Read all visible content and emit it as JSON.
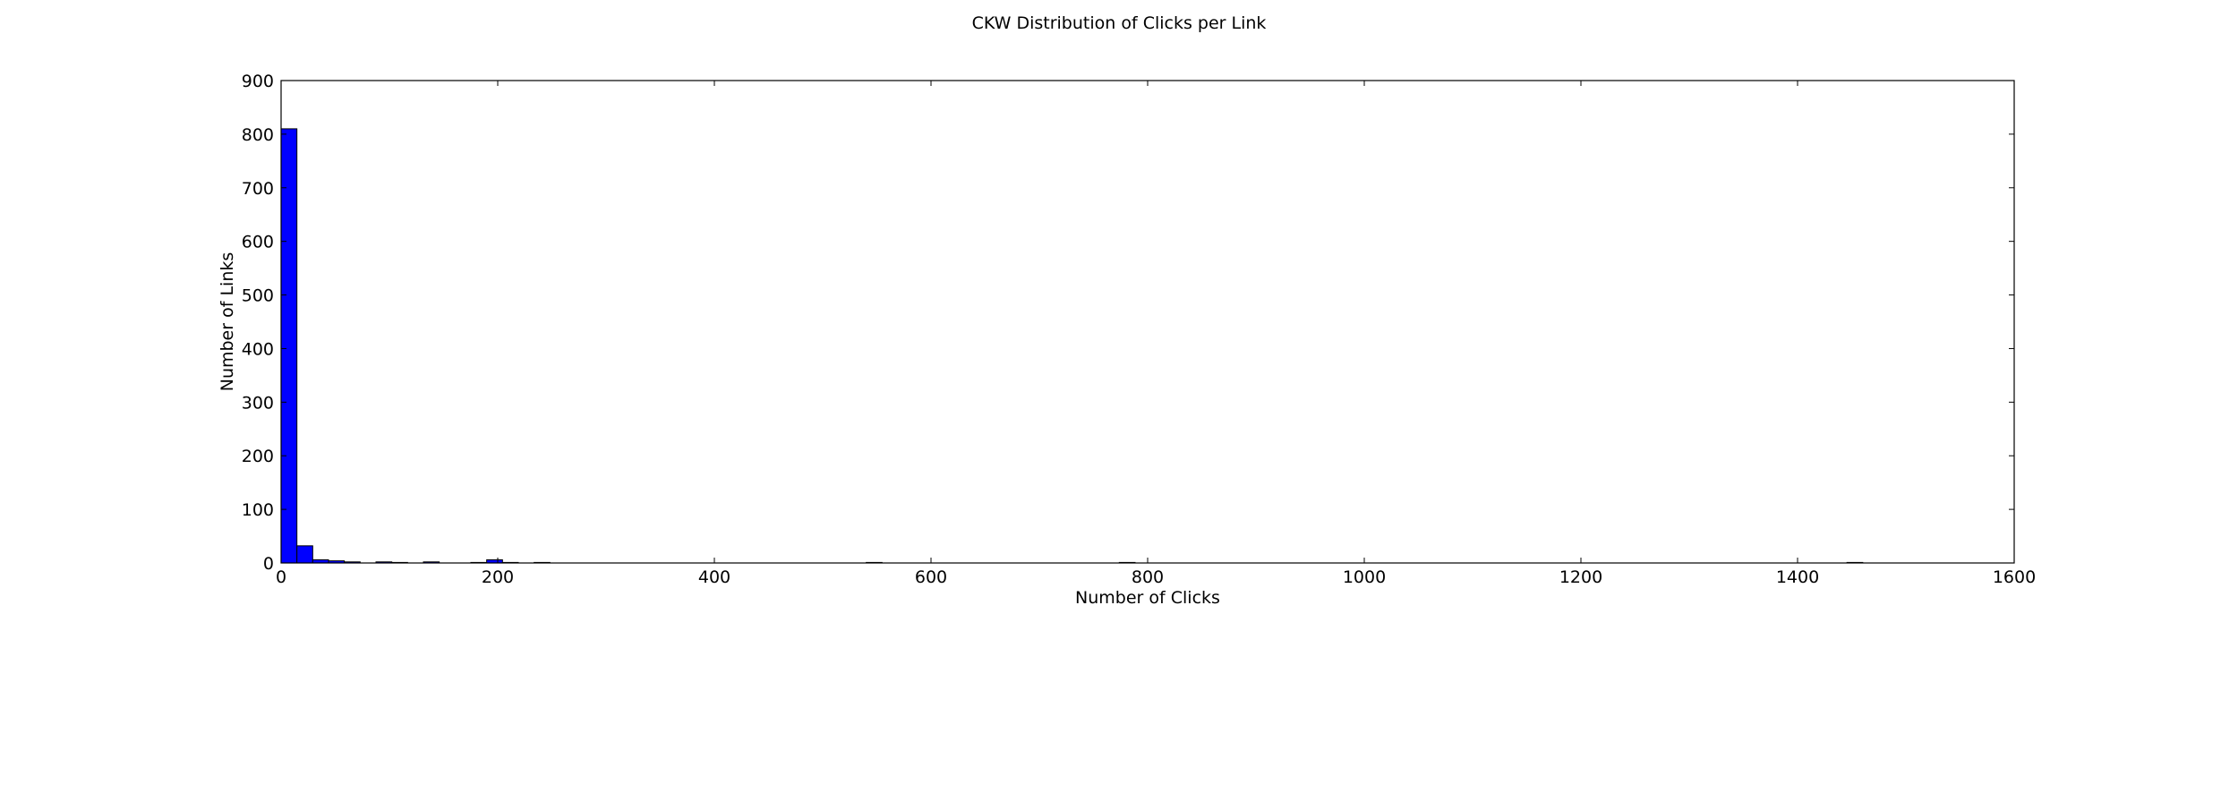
{
  "chart_data": {
    "type": "bar",
    "title": "CKW Distribution of Clicks per Link",
    "xlabel": "Number of Clicks",
    "ylabel": "Number of Links",
    "xlim": [
      0,
      1600
    ],
    "ylim": [
      0,
      900
    ],
    "xticks": [
      "0",
      "200",
      "400",
      "600",
      "800",
      "1000",
      "1200",
      "1400",
      "1600"
    ],
    "yticks": [
      "0",
      "100",
      "200",
      "300",
      "400",
      "500",
      "600",
      "700",
      "800",
      "900"
    ],
    "grid": false,
    "bar_color": "#0000ff",
    "bins": [
      {
        "x0": 0,
        "x1": 14.6,
        "count": 810
      },
      {
        "x0": 14.6,
        "x1": 29.2,
        "count": 32
      },
      {
        "x0": 29.2,
        "x1": 43.8,
        "count": 6
      },
      {
        "x0": 43.8,
        "x1": 58.4,
        "count": 4
      },
      {
        "x0": 58.4,
        "x1": 73.0,
        "count": 2
      },
      {
        "x0": 87.6,
        "x1": 102.2,
        "count": 2
      },
      {
        "x0": 102.2,
        "x1": 116.8,
        "count": 1
      },
      {
        "x0": 131.4,
        "x1": 146.0,
        "count": 2
      },
      {
        "x0": 175.2,
        "x1": 189.8,
        "count": 1
      },
      {
        "x0": 189.8,
        "x1": 204.4,
        "count": 6
      },
      {
        "x0": 204.4,
        "x1": 219.0,
        "count": 1
      },
      {
        "x0": 233.6,
        "x1": 248.2,
        "count": 1
      },
      {
        "x0": 540.2,
        "x1": 554.8,
        "count": 1
      },
      {
        "x0": 773.8,
        "x1": 788.4,
        "count": 1
      },
      {
        "x0": 1445.6,
        "x1": 1460.2,
        "count": 1
      }
    ]
  }
}
